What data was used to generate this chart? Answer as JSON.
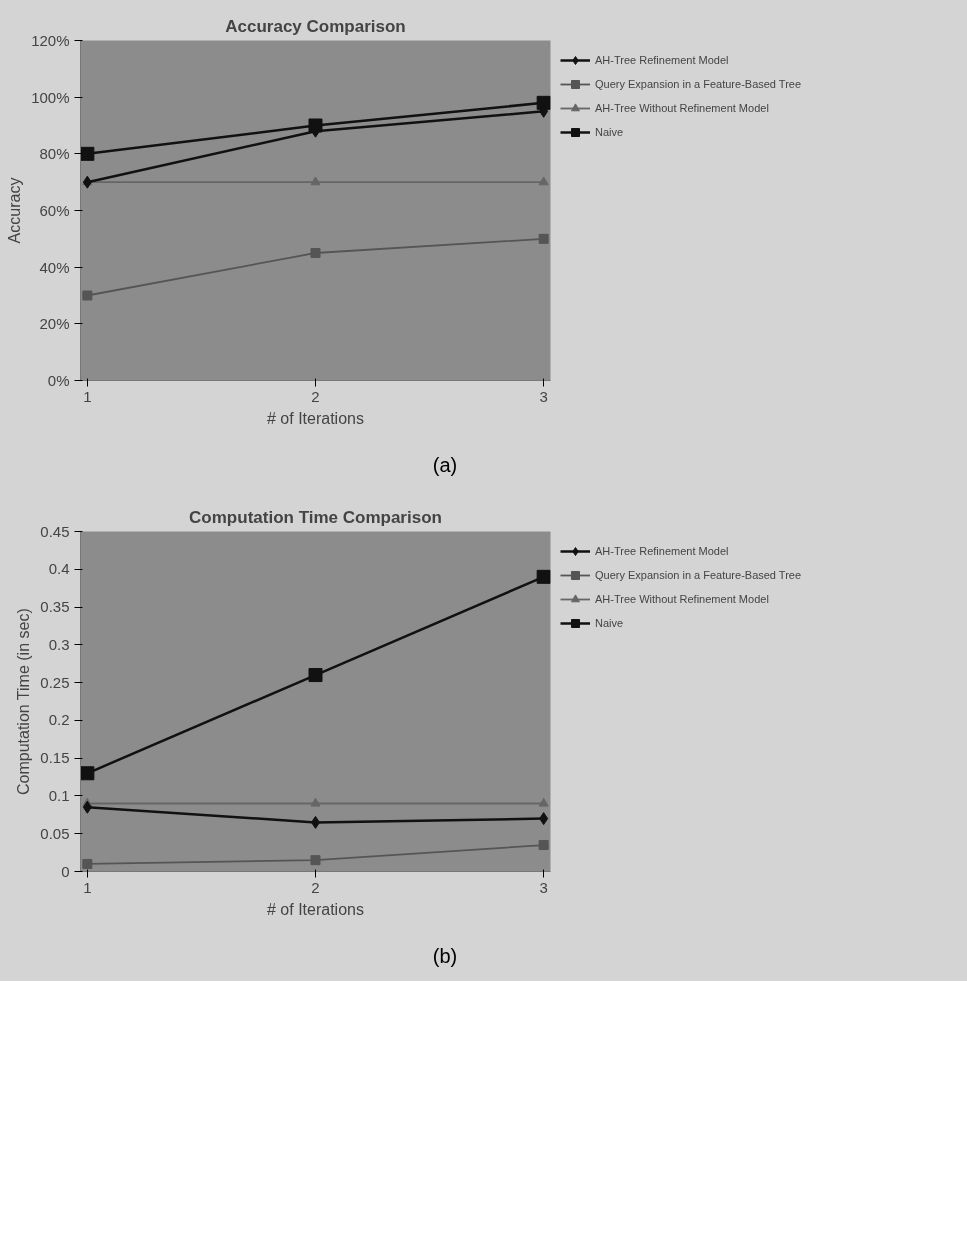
{
  "chart_data": [
    {
      "type": "line",
      "title": "Accuracy Comparison",
      "xlabel": "# of Iterations",
      "ylabel": "Accuracy",
      "categories": [
        "1",
        "2",
        "3"
      ],
      "ylim": [
        0,
        1.2
      ],
      "yticks": [
        {
          "value": 0,
          "label": "0%"
        },
        {
          "value": 0.2,
          "label": "20%"
        },
        {
          "value": 0.4,
          "label": "40%"
        },
        {
          "value": 0.6,
          "label": "60%"
        },
        {
          "value": 0.8,
          "label": "80%"
        },
        {
          "value": 1.0,
          "label": "100%"
        },
        {
          "value": 1.2,
          "label": "120%"
        }
      ],
      "grid": false,
      "legend": "right",
      "line_style": "solid",
      "annotations": [
        "(a)"
      ],
      "series": [
        {
          "name": "AH-Tree Refinement Model",
          "color": "#111111",
          "marker": "diamond",
          "values": [
            0.7,
            0.88,
            0.95
          ]
        },
        {
          "name": "Query Expansion in a Feature-Based Tree",
          "color": "#555555",
          "marker": "square",
          "values": [
            0.3,
            0.45,
            0.5
          ]
        },
        {
          "name": "AH-Tree Without Refinement Model",
          "color": "#666666",
          "marker": "triangle",
          "values": [
            0.7,
            0.7,
            0.7
          ]
        },
        {
          "name": "Naive",
          "color": "#111111",
          "marker": "square",
          "values": [
            0.8,
            0.9,
            0.98
          ]
        }
      ]
    },
    {
      "type": "line",
      "title": "Computation Time Comparison",
      "xlabel": "# of Iterations",
      "ylabel": "Computation Time (in sec)",
      "categories": [
        "1",
        "2",
        "3"
      ],
      "ylim": [
        0,
        0.45
      ],
      "yticks": [
        0,
        0.05,
        0.1,
        0.15,
        0.2,
        0.25,
        0.3,
        0.35,
        0.4,
        0.45
      ],
      "grid": false,
      "legend": "right",
      "line_style": "solid",
      "annotations": [
        "(b)"
      ],
      "series": [
        {
          "name": "AH-Tree Refinement Model",
          "color": "#111111",
          "marker": "diamond",
          "values": [
            0.085,
            0.065,
            0.07
          ]
        },
        {
          "name": "Query Expansion in a Feature-Based Tree",
          "color": "#555555",
          "marker": "square",
          "values": [
            0.01,
            0.015,
            0.035
          ]
        },
        {
          "name": "AH-Tree Without Refinement Model",
          "color": "#666666",
          "marker": "triangle",
          "values": [
            0.09,
            0.09,
            0.09
          ]
        },
        {
          "name": "Naive",
          "color": "#111111",
          "marker": "square",
          "values": [
            0.13,
            0.26,
            0.39
          ]
        }
      ]
    }
  ]
}
